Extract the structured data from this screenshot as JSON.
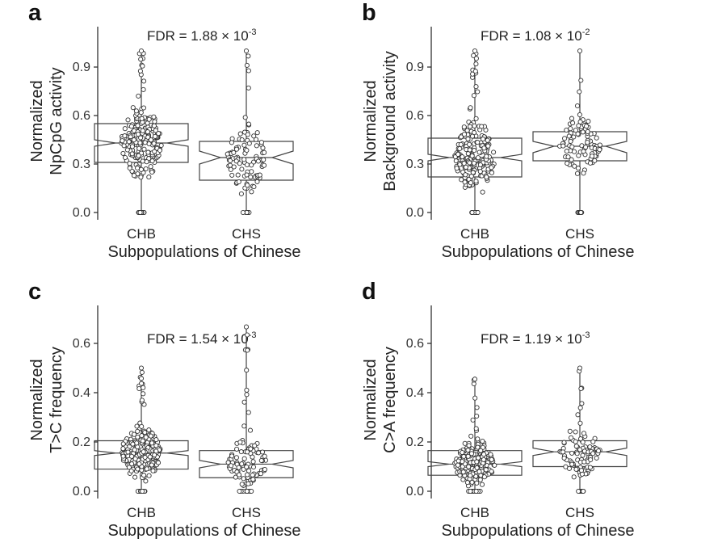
{
  "figure": {
    "xlabel": "Subpopulations of Chinese",
    "categories": [
      "CHB",
      "CHS"
    ],
    "point_colors": {
      "fill": "#ffffff",
      "stroke": "#333333"
    }
  },
  "chart_data": [
    {
      "type": "boxplot",
      "panel_label": "a",
      "fdr": {
        "label": "FDR",
        "mantissa": "1.88 × 10",
        "exponent": "-3"
      },
      "ylabel_lines": [
        "Normalized",
        "NpCpG activity"
      ],
      "xlabel": "Subpopulations of Chinese",
      "categories": [
        "CHB",
        "CHS"
      ],
      "yticks": [
        "0.0",
        "0.3",
        "0.6",
        "0.9"
      ],
      "ytick_values": [
        0.0,
        0.3,
        0.6,
        0.9
      ],
      "ylim": [
        -0.02,
        1.15
      ],
      "boxes": [
        {
          "name": "CHB",
          "q1": 0.31,
          "median": 0.43,
          "q3": 0.55,
          "notch_low": 0.41,
          "notch_high": 0.45,
          "min": 0.0,
          "max": 1.0,
          "n": 220
        },
        {
          "name": "CHS",
          "q1": 0.2,
          "median": 0.34,
          "q3": 0.44,
          "notch_low": 0.3,
          "notch_high": 0.38,
          "min": 0.0,
          "max": 1.0,
          "n": 100
        }
      ]
    },
    {
      "type": "boxplot",
      "panel_label": "b",
      "fdr": {
        "label": "FDR",
        "mantissa": "1.08 × 10",
        "exponent": "-2"
      },
      "ylabel_lines": [
        "Normalized",
        "Background activity"
      ],
      "xlabel": "Subpopulations of Chinese",
      "categories": [
        "CHB",
        "CHS"
      ],
      "yticks": [
        "0.0",
        "0.3",
        "0.6",
        "0.9"
      ],
      "ytick_values": [
        0.0,
        0.3,
        0.6,
        0.9
      ],
      "ylim": [
        -0.02,
        1.15
      ],
      "boxes": [
        {
          "name": "CHB",
          "q1": 0.22,
          "median": 0.34,
          "q3": 0.46,
          "notch_low": 0.32,
          "notch_high": 0.36,
          "min": 0.0,
          "max": 1.0,
          "n": 220
        },
        {
          "name": "CHS",
          "q1": 0.32,
          "median": 0.41,
          "q3": 0.5,
          "notch_low": 0.37,
          "notch_high": 0.44,
          "min": 0.0,
          "max": 1.0,
          "n": 100
        }
      ]
    },
    {
      "type": "boxplot",
      "panel_label": "c",
      "fdr": {
        "label": "FDR",
        "mantissa": "1.54 × 10",
        "exponent": "-3"
      },
      "ylabel_lines": [
        "Normalized",
        "T>C frequency"
      ],
      "xlabel": "Subpopulations of Chinese",
      "categories": [
        "CHB",
        "CHS"
      ],
      "yticks": [
        "0.0",
        "0.2",
        "0.4",
        "0.6"
      ],
      "ytick_values": [
        0.0,
        0.2,
        0.4,
        0.6
      ],
      "ylim": [
        -0.02,
        0.75
      ],
      "boxes": [
        {
          "name": "CHB",
          "q1": 0.09,
          "median": 0.155,
          "q3": 0.205,
          "notch_low": 0.145,
          "notch_high": 0.165,
          "min": 0.0,
          "max": 0.5,
          "n": 220
        },
        {
          "name": "CHS",
          "q1": 0.055,
          "median": 0.11,
          "q3": 0.165,
          "notch_low": 0.095,
          "notch_high": 0.125,
          "min": 0.0,
          "max": 0.667,
          "n": 100
        }
      ]
    },
    {
      "type": "boxplot",
      "panel_label": "d",
      "fdr": {
        "label": "FDR",
        "mantissa": "1.19 × 10",
        "exponent": "-3"
      },
      "ylabel_lines": [
        "Normalized",
        "C>A frequency"
      ],
      "xlabel": "Subpopulations of Chinese",
      "categories": [
        "CHB",
        "CHS"
      ],
      "yticks": [
        "0.0",
        "0.2",
        "0.4",
        "0.6"
      ],
      "ytick_values": [
        0.0,
        0.2,
        0.4,
        0.6
      ],
      "ylim": [
        -0.02,
        0.75
      ],
      "boxes": [
        {
          "name": "CHB",
          "q1": 0.065,
          "median": 0.11,
          "q3": 0.165,
          "notch_low": 0.1,
          "notch_high": 0.12,
          "min": 0.0,
          "max": 0.455,
          "n": 220
        },
        {
          "name": "CHS",
          "q1": 0.1,
          "median": 0.16,
          "q3": 0.205,
          "notch_low": 0.145,
          "notch_high": 0.175,
          "min": 0.0,
          "max": 0.5,
          "n": 100
        }
      ]
    }
  ]
}
